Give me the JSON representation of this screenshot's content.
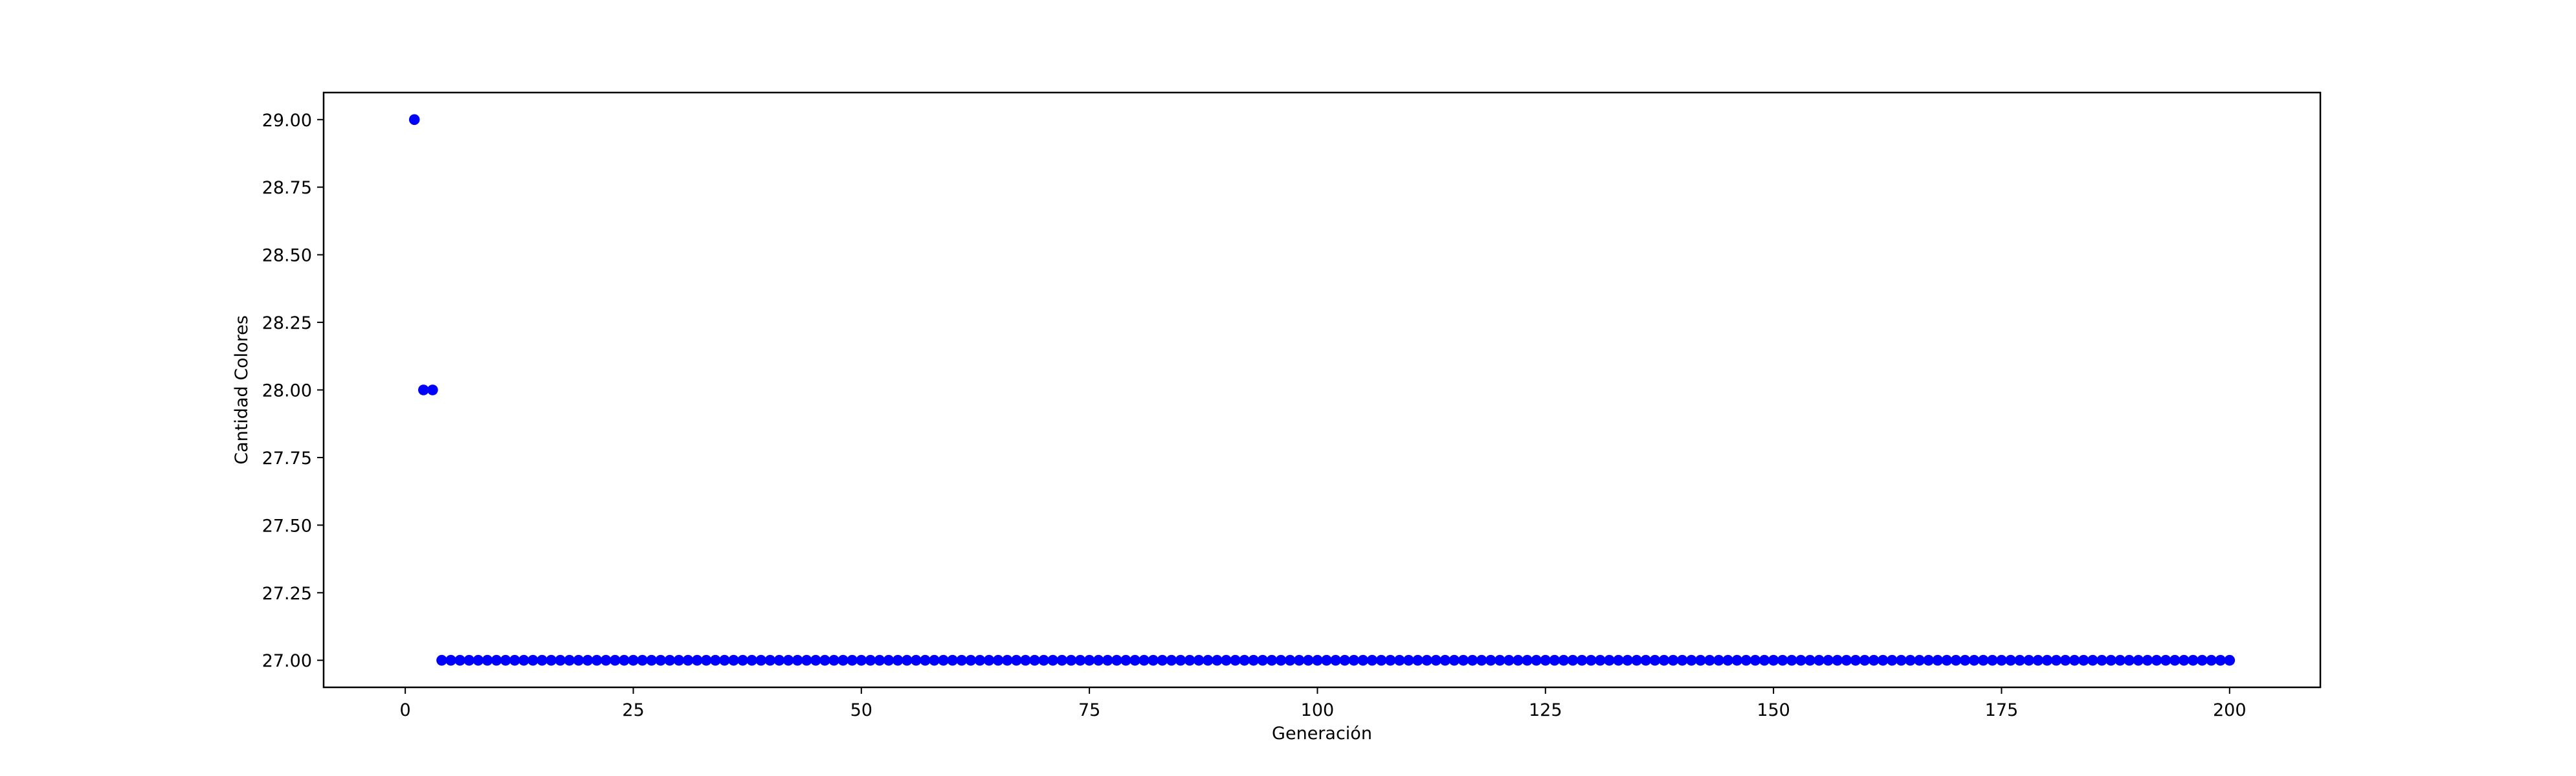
{
  "chart_data": {
    "type": "scatter",
    "title": "",
    "xlabel": "Generación",
    "ylabel": "Cantidad Colores",
    "xlim": [
      -8.95,
      209.95
    ],
    "ylim": [
      26.9,
      29.1
    ],
    "x_ticks": [
      0,
      25,
      50,
      75,
      100,
      125,
      150,
      175,
      200
    ],
    "x_tick_labels": [
      "0",
      "25",
      "50",
      "75",
      "100",
      "125",
      "150",
      "175",
      "200"
    ],
    "y_ticks": [
      27.0,
      27.25,
      27.5,
      27.75,
      28.0,
      28.25,
      28.5,
      28.75,
      29.0
    ],
    "y_tick_labels": [
      "27.00",
      "27.25",
      "27.50",
      "27.75",
      "28.00",
      "28.25",
      "28.50",
      "28.75",
      "29.00"
    ],
    "grid": false,
    "marker_color": "#0000ff",
    "series": [
      {
        "points": [
          {
            "x": 1,
            "y": 29
          },
          {
            "x": 2,
            "y": 28
          },
          {
            "x": 3,
            "y": 28
          }
        ],
        "constant_run": {
          "x_start": 4,
          "x_end": 200,
          "step": 1,
          "y": 27
        }
      }
    ]
  }
}
